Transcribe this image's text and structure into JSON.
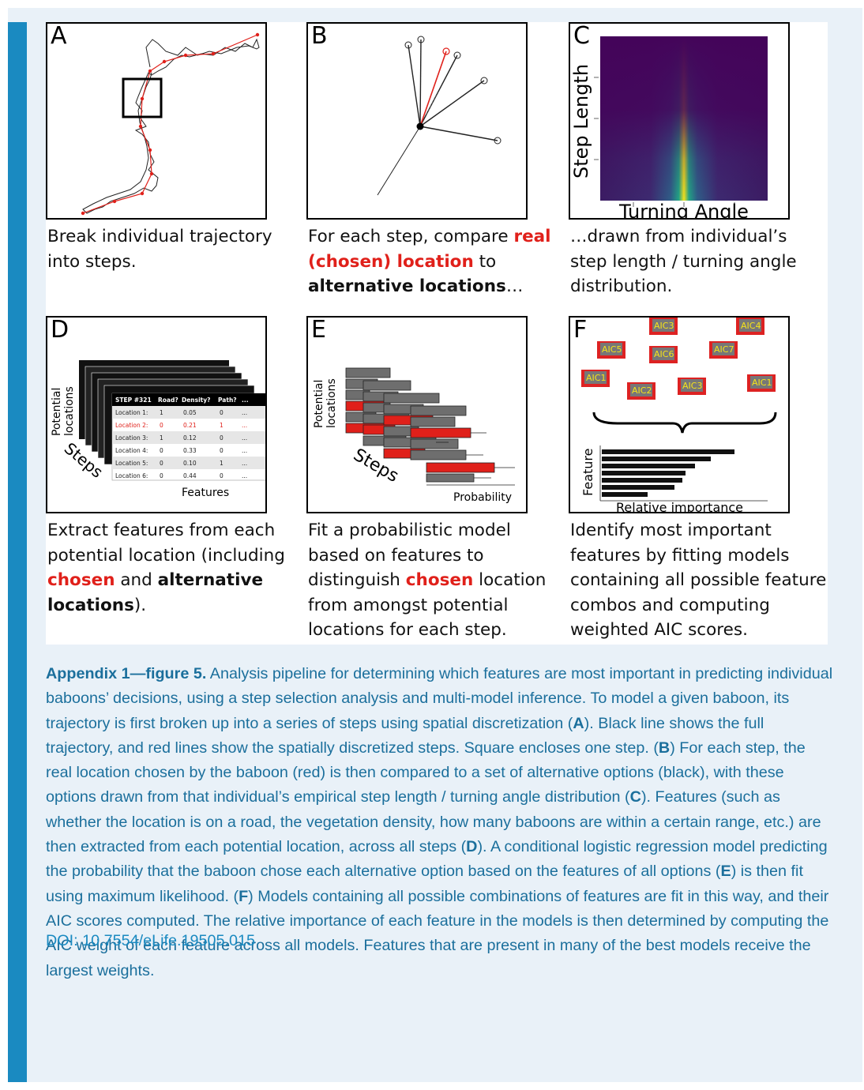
{
  "panels": {
    "a": {
      "label": "A",
      "caption": "Break individual trajectory into steps."
    },
    "b": {
      "label": "B",
      "caption_prefix": "For each step, compare ",
      "caption_red": "real (chosen) location",
      "caption_mid": " to ",
      "caption_bold": "alternative locations",
      "caption_suffix": "…"
    },
    "c": {
      "label": "C",
      "ylabel": "Step Length",
      "xlabel": "Turning Angle",
      "caption": "…drawn from individual’s step length / turning angle distribution."
    },
    "d": {
      "label": "D",
      "ylabel_line1": "Potential",
      "ylabel_line2": "locations",
      "steps_label": "Steps",
      "features_label": "Features",
      "table_headers": [
        "STEP #321",
        "Road?",
        "Density?",
        "Path?",
        "..."
      ],
      "table_rows": [
        [
          "Location 1:",
          "1",
          "0.05",
          "0",
          "..."
        ],
        [
          "Location 2:",
          "0",
          "0.21",
          "1",
          "..."
        ],
        [
          "Location 3:",
          "1",
          "0.12",
          "0",
          "..."
        ],
        [
          "Location 4:",
          "0",
          "0.33",
          "0",
          "..."
        ],
        [
          "Location 5:",
          "0",
          "0.10",
          "1",
          "..."
        ],
        [
          "Location 6:",
          "0",
          "0.44",
          "0",
          "..."
        ]
      ],
      "caption_prefix": "Extract features from each potential location (including ",
      "caption_red": "chosen",
      "caption_mid": " and ",
      "caption_bold": "alternative locations",
      "caption_suffix": ")."
    },
    "e": {
      "label": "E",
      "ylabel_line1": "Potential",
      "ylabel_line2": "locations",
      "steps_label": "Steps",
      "xlabel": "Probability",
      "caption_prefix": "Fit a probabilistic model based on features to distinguish ",
      "caption_red": "chosen",
      "caption_suffix": " location from amongst potential locations for each step."
    },
    "f": {
      "label": "F",
      "aic_labels": [
        "AIC3",
        "AIC4",
        "AIC5",
        "AIC6",
        "AIC7",
        "AIC1",
        "AIC2",
        "AIC3",
        "AIC1"
      ],
      "ylabel": "Feature",
      "xlabel": "Relative importance",
      "caption": "Identify most important features by fitting models containing all possible feature combos and computing weighted AIC scores."
    }
  },
  "caption": {
    "title": "Appendix 1—figure 5.",
    "t1": " Analysis pipeline for determining which features are most important in predicting individual baboons’ decisions, using a step selection analysis and multi-model inference. To model a given baboon, its trajectory is first broken up into a series of steps using spatial discretization (",
    "t2": "). Black line shows the full trajectory, and red lines show the spatially discretized steps. Square encloses one step. (",
    "t3": ") For each step, the real location chosen by the baboon (red) is then compared to a set of alternative options (black), with these options drawn from that individual’s empirical step length / turning angle distribution (",
    "t4": "). Features (such as whether the location is on a road, the vegetation density, how many baboons are within a certain range, etc.) are then extracted from each potential location, across all steps (",
    "t5": "). A conditional logistic regression model predicting the probability that the baboon chose each alternative option based on the features of all options (",
    "t6": ") is then fit using maximum likelihood. (",
    "t7": ") Models containing all possible combinations of features are fit in this way, and their AIC scores computed. The relative importance of each feature in the models is then determined by computing the AIC weight of each feature across all models. Features that are present in many of the best models receive the largest weights.",
    "ref_a": "A",
    "ref_b": "B",
    "ref_c": "C",
    "ref_d": "D",
    "ref_e": "E",
    "ref_f": "F"
  },
  "doi": "DOI: 10.7554/eLife.19505.015",
  "colors": {
    "accent": "#1a8ac1",
    "red": "#e0201a"
  }
}
